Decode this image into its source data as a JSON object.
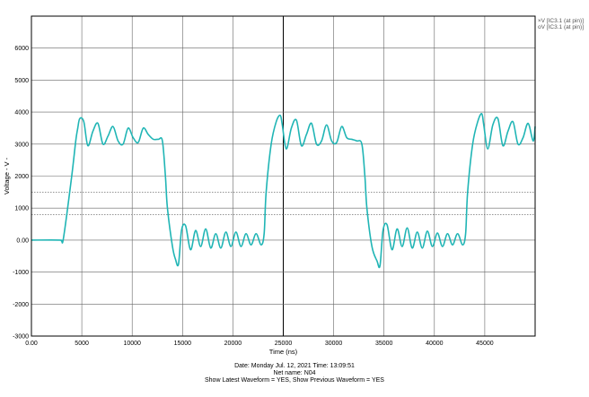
{
  "chart_data": {
    "type": "line",
    "title": "",
    "xlabel": "Time  (ns)",
    "ylabel": "Voltage  - V -",
    "xlim": [
      0,
      50000
    ],
    "ylim": [
      -3000,
      7000
    ],
    "grid": true,
    "legend_position": "top-right",
    "x_ticks": [
      0,
      5000,
      10000,
      15000,
      20000,
      25000,
      30000,
      35000,
      40000,
      45000
    ],
    "x_tick_labels": [
      "0.00",
      "5000",
      "10000",
      "15000",
      "20000",
      "25000",
      "30000",
      "35000",
      "40000",
      "45000"
    ],
    "y_ticks": [
      -3000,
      -2000,
      -1000,
      0,
      1000,
      2000,
      3000,
      4000,
      5000,
      6000
    ],
    "y_tick_labels": [
      "-3000",
      "-2000",
      "-1000",
      "0.00",
      "1000",
      "2000",
      "3000",
      "4000",
      "5000",
      "6000"
    ],
    "reference_lines": [
      1500,
      800
    ],
    "series": [
      {
        "name": "V [IC3.1 (at pin)]",
        "color": "#20B5B5",
        "x": [
          0,
          2800,
          3000,
          3200,
          4000,
          4400,
          4600,
          4800,
          5200,
          5600,
          6100,
          6600,
          7100,
          7600,
          8100,
          8600,
          9100,
          9600,
          10100,
          10600,
          11100,
          11600,
          12100,
          12600,
          13000,
          13300,
          13500,
          14000,
          14300,
          14600,
          14900,
          15300,
          15800,
          16300,
          16800,
          17300,
          17800,
          18300,
          18800,
          19300,
          19800,
          20300,
          20800,
          21300,
          21800,
          22300,
          22800,
          23100,
          23300,
          23800,
          24300,
          24700,
          24900,
          25300,
          25800,
          26300,
          26800,
          27300,
          27800,
          28300,
          28800,
          29300,
          29800,
          30300,
          30800,
          31300,
          31800,
          32300,
          32800,
          33100,
          33300,
          33800,
          34300,
          34600,
          34900,
          35300,
          35800,
          36300,
          36800,
          37300,
          37800,
          38300,
          38800,
          39300,
          39800,
          40300,
          40800,
          41300,
          41800,
          42300,
          42800,
          43100,
          43300,
          43800,
          44300,
          44700,
          44900,
          45300,
          45800,
          46300,
          46800,
          47300,
          47800,
          48300,
          48800,
          49300,
          49800,
          50000
        ],
        "y": [
          0,
          0,
          -30,
          100,
          2000,
          3100,
          3500,
          3800,
          3700,
          2950,
          3400,
          3650,
          3000,
          3250,
          3550,
          3100,
          3000,
          3500,
          3200,
          3050,
          3500,
          3300,
          3150,
          3150,
          3100,
          2000,
          1000,
          -200,
          -600,
          -750,
          300,
          450,
          -300,
          300,
          -200,
          350,
          -250,
          200,
          -250,
          250,
          -200,
          250,
          -200,
          200,
          -150,
          200,
          -150,
          200,
          1500,
          3000,
          3700,
          3900,
          3600,
          2850,
          3500,
          3750,
          2950,
          3300,
          3650,
          3000,
          3100,
          3600,
          3100,
          3050,
          3550,
          3200,
          3150,
          3100,
          3000,
          2000,
          1000,
          -200,
          -650,
          -800,
          300,
          480,
          -300,
          350,
          -200,
          380,
          -250,
          250,
          -250,
          280,
          -200,
          220,
          -200,
          200,
          -150,
          200,
          -150,
          200,
          1500,
          3000,
          3700,
          3950,
          3600,
          2850,
          3600,
          3800,
          2950,
          3400,
          3700,
          3000,
          3200,
          3650,
          3100,
          3550
        ]
      },
      {
        "name": "V [IC3.1 (at pin)]",
        "color": "#20B5B5",
        "x": [],
        "y": []
      }
    ]
  },
  "footer": {
    "date": "Date: Monday Jul. 12, 2021   Time: 13:09:51",
    "net": "Net name: N04",
    "show": "Show Latest Waveform = YES,   Show Previous Waveform = YES"
  },
  "legend_markers": [
    "×",
    "o"
  ]
}
